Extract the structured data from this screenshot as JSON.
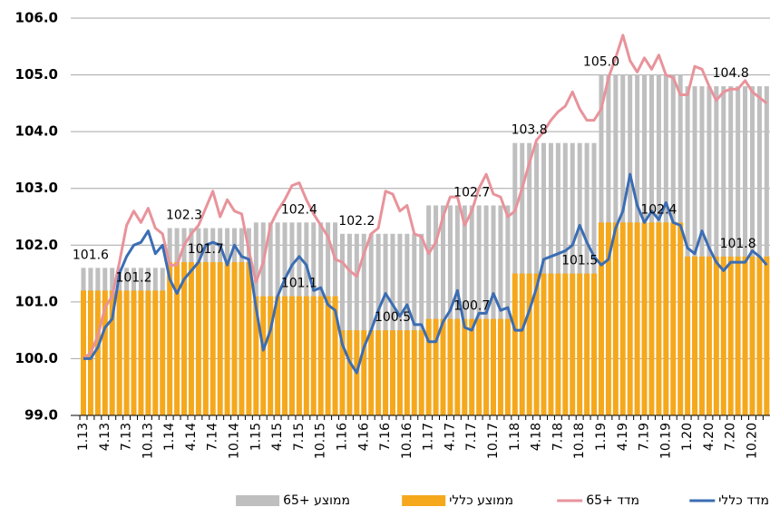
{
  "chart_data": {
    "type": "combo",
    "categories": [
      "1.13",
      null,
      null,
      "4.13",
      null,
      null,
      "7.13",
      null,
      null,
      "10.13",
      null,
      null,
      "1.14",
      null,
      null,
      "4.14",
      null,
      null,
      "7.14",
      null,
      null,
      "10.14",
      null,
      null,
      "1.15",
      null,
      null,
      "4.15",
      null,
      null,
      "7.15",
      null,
      null,
      "10.15",
      null,
      null,
      "1.16",
      null,
      null,
      "4.16",
      null,
      null,
      "7.16",
      null,
      null,
      "10.16",
      null,
      null,
      "1.17",
      null,
      null,
      "4.17",
      null,
      null,
      "7.17",
      null,
      null,
      "10.17",
      null,
      null,
      "1.18",
      null,
      null,
      "4.18",
      null,
      null,
      "7.18",
      null,
      null,
      "10.18",
      null,
      null,
      "1.19",
      null,
      null,
      "4.19",
      null,
      null,
      "7.19",
      null,
      null,
      "10.19",
      null,
      null,
      "1.20",
      null,
      null,
      "4.20",
      null,
      null,
      "7.20",
      null,
      null,
      "10.20",
      null,
      null
    ],
    "series": [
      {
        "name": "ממוצע +65",
        "type": "bar",
        "color": "#bfbfbf",
        "values": [
          101.6,
          101.6,
          101.6,
          101.6,
          101.6,
          101.6,
          101.6,
          101.6,
          101.6,
          101.6,
          101.6,
          101.6,
          102.3,
          102.3,
          102.3,
          102.3,
          102.3,
          102.3,
          102.3,
          102.3,
          102.3,
          102.3,
          102.3,
          102.3,
          102.4,
          102.4,
          102.4,
          102.4,
          102.4,
          102.4,
          102.4,
          102.4,
          102.4,
          102.4,
          102.4,
          102.4,
          102.2,
          102.2,
          102.2,
          102.2,
          102.2,
          102.2,
          102.2,
          102.2,
          102.2,
          102.2,
          102.2,
          102.2,
          102.7,
          102.7,
          102.7,
          102.7,
          102.7,
          102.7,
          102.7,
          102.7,
          102.7,
          102.7,
          102.7,
          102.7,
          103.8,
          103.8,
          103.8,
          103.8,
          103.8,
          103.8,
          103.8,
          103.8,
          103.8,
          103.8,
          103.8,
          103.8,
          105.0,
          105.0,
          105.0,
          105.0,
          105.0,
          105.0,
          105.0,
          105.0,
          105.0,
          105.0,
          105.0,
          105.0,
          104.8,
          104.8,
          104.8,
          104.8,
          104.8,
          104.8,
          104.8,
          104.8,
          104.8,
          104.8,
          104.8,
          104.8
        ],
        "value_labels": [
          null,
          "101.6",
          null,
          null,
          null,
          null,
          null,
          null,
          null,
          null,
          null,
          null,
          null,
          null,
          "102.3",
          null,
          null,
          null,
          null,
          null,
          null,
          null,
          null,
          null,
          null,
          null,
          null,
          null,
          null,
          null,
          "102.4",
          null,
          null,
          null,
          null,
          null,
          null,
          null,
          "102.2",
          null,
          null,
          null,
          null,
          null,
          null,
          null,
          null,
          null,
          null,
          null,
          null,
          null,
          null,
          null,
          "102.7",
          null,
          null,
          null,
          null,
          null,
          null,
          null,
          "103.8",
          null,
          null,
          null,
          null,
          null,
          null,
          null,
          null,
          null,
          "105.0",
          null,
          null,
          null,
          null,
          null,
          null,
          null,
          null,
          null,
          null,
          null,
          null,
          null,
          null,
          null,
          null,
          null,
          "104.8",
          null,
          null,
          null,
          null,
          null
        ]
      },
      {
        "name": "ממוצע כללי",
        "type": "bar",
        "color": "#f5a81c",
        "values": [
          101.2,
          101.2,
          101.2,
          101.2,
          101.2,
          101.2,
          101.2,
          101.2,
          101.2,
          101.2,
          101.2,
          101.2,
          101.7,
          101.7,
          101.7,
          101.7,
          101.7,
          101.7,
          101.7,
          101.7,
          101.7,
          101.7,
          101.7,
          101.7,
          101.1,
          101.1,
          101.1,
          101.1,
          101.1,
          101.1,
          101.1,
          101.1,
          101.1,
          101.1,
          101.1,
          101.1,
          100.5,
          100.5,
          100.5,
          100.5,
          100.5,
          100.5,
          100.5,
          100.5,
          100.5,
          100.5,
          100.5,
          100.5,
          100.7,
          100.7,
          100.7,
          100.7,
          100.7,
          100.7,
          100.7,
          100.7,
          100.7,
          100.7,
          100.7,
          100.7,
          101.5,
          101.5,
          101.5,
          101.5,
          101.5,
          101.5,
          101.5,
          101.5,
          101.5,
          101.5,
          101.5,
          101.5,
          102.4,
          102.4,
          102.4,
          102.4,
          102.4,
          102.4,
          102.4,
          102.4,
          102.4,
          102.4,
          102.4,
          102.4,
          101.8,
          101.8,
          101.8,
          101.8,
          101.8,
          101.8,
          101.8,
          101.8,
          101.8,
          101.8,
          101.8,
          101.8
        ],
        "value_labels": [
          null,
          null,
          null,
          null,
          null,
          null,
          null,
          "101.2",
          null,
          null,
          null,
          null,
          null,
          null,
          null,
          null,
          null,
          "101.7",
          null,
          null,
          null,
          null,
          null,
          null,
          null,
          null,
          null,
          null,
          null,
          null,
          "101.1",
          null,
          null,
          null,
          null,
          null,
          null,
          null,
          null,
          null,
          null,
          null,
          null,
          "100.5",
          null,
          null,
          null,
          null,
          null,
          null,
          null,
          null,
          null,
          null,
          "100.7",
          null,
          null,
          null,
          null,
          null,
          null,
          null,
          null,
          null,
          null,
          null,
          null,
          null,
          null,
          "101.5",
          null,
          null,
          null,
          null,
          null,
          null,
          null,
          null,
          null,
          null,
          "102.4",
          null,
          null,
          null,
          null,
          null,
          null,
          null,
          null,
          null,
          null,
          "101.8",
          null,
          null,
          null,
          null
        ]
      },
      {
        "name": "מדד +65",
        "type": "line",
        "color": "#e8939b",
        "values": [
          100.0,
          100.1,
          100.4,
          100.9,
          101.1,
          101.7,
          102.35,
          102.6,
          102.4,
          102.65,
          102.3,
          102.2,
          101.65,
          101.65,
          102.0,
          102.2,
          102.35,
          102.65,
          102.95,
          102.5,
          102.8,
          102.6,
          102.55,
          101.9,
          101.35,
          101.7,
          102.35,
          102.6,
          102.8,
          103.05,
          103.1,
          102.8,
          102.55,
          102.35,
          102.15,
          101.75,
          101.7,
          101.55,
          101.45,
          101.85,
          102.2,
          102.3,
          102.95,
          102.9,
          102.6,
          102.7,
          102.2,
          102.15,
          101.85,
          102.05,
          102.5,
          102.85,
          102.85,
          102.35,
          102.6,
          103.0,
          103.25,
          102.9,
          102.85,
          102.5,
          102.6,
          103.0,
          103.45,
          103.85,
          104.0,
          104.2,
          104.35,
          104.45,
          104.7,
          104.4,
          104.2,
          104.2,
          104.4,
          104.95,
          105.3,
          105.7,
          105.25,
          105.05,
          105.3,
          105.1,
          105.35,
          105.0,
          104.95,
          104.65,
          104.65,
          105.15,
          105.1,
          104.8,
          104.55,
          104.7,
          104.75,
          104.75,
          104.9,
          104.7,
          104.6,
          104.5
        ]
      },
      {
        "name": "מדד כללי",
        "type": "line",
        "color": "#3b6db3",
        "values": [
          100.0,
          100.0,
          100.2,
          100.55,
          100.7,
          101.5,
          101.8,
          102.0,
          102.05,
          102.25,
          101.85,
          102.0,
          101.4,
          101.15,
          101.4,
          101.55,
          101.7,
          102.0,
          102.05,
          102.0,
          101.65,
          102.0,
          101.8,
          101.75,
          100.9,
          100.15,
          100.5,
          101.1,
          101.4,
          101.65,
          101.8,
          101.65,
          101.2,
          101.25,
          100.95,
          100.85,
          100.25,
          99.95,
          99.75,
          100.2,
          100.5,
          100.85,
          101.15,
          100.95,
          100.75,
          100.95,
          100.6,
          100.6,
          100.3,
          100.3,
          100.65,
          100.85,
          101.2,
          100.55,
          100.5,
          100.8,
          100.8,
          101.15,
          100.85,
          100.9,
          100.5,
          100.5,
          100.85,
          101.25,
          101.75,
          101.8,
          101.85,
          101.9,
          102.0,
          102.35,
          102.05,
          101.8,
          101.65,
          101.75,
          102.3,
          102.6,
          103.25,
          102.7,
          102.4,
          102.6,
          102.45,
          102.75,
          102.4,
          102.35,
          101.95,
          101.85,
          102.25,
          101.95,
          101.7,
          101.55,
          101.7,
          101.7,
          101.7,
          101.9,
          101.8,
          101.65
        ]
      }
    ],
    "ylim": [
      99.0,
      106.0
    ],
    "yticks": [
      {
        "value": 99,
        "label": "99.0"
      },
      {
        "value": 100,
        "label": "100.0"
      },
      {
        "value": 101,
        "label": "101.0"
      },
      {
        "value": 102,
        "label": "102.0"
      },
      {
        "value": 103,
        "label": "103.0"
      },
      {
        "value": 104,
        "label": "104.0"
      },
      {
        "value": 105,
        "label": "105.0"
      },
      {
        "value": 106,
        "label": "106.0"
      }
    ],
    "grid": true,
    "legend": "bottom"
  }
}
